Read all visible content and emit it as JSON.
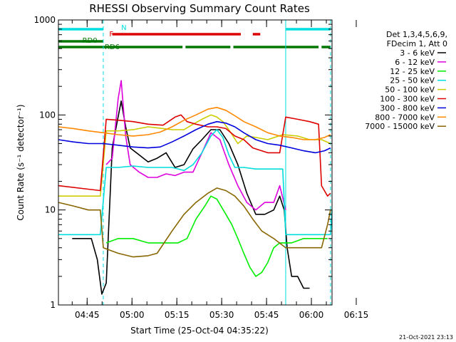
{
  "chart_data": {
    "type": "line",
    "title": "RHESSI Observing Summary Count Rates",
    "xlabel": "Start Time (25-Oct-04 04:35:22)",
    "ylabel": "Count Rate (s⁻¹ detector⁻¹)",
    "yscale": "log",
    "ylim": [
      1,
      1000
    ],
    "yticks": [
      "1",
      "10",
      "100",
      "1000"
    ],
    "xticks": [
      "04:45",
      "05:00",
      "05:15",
      "05:30",
      "05:45",
      "06:00",
      "06:15"
    ],
    "grid": false,
    "legend_position": "right",
    "legend_title": [
      "Det 1,3,4,5,6,9,",
      "FDecim 1, Att 0"
    ],
    "timestamp": "21-Oct-2021 23:13",
    "series": [
      {
        "name": "3 - 6 keV",
        "color": "#000000",
        "points": [
          [
            4.6,
            5
          ],
          [
            11,
            5
          ],
          [
            13,
            3
          ],
          [
            14.5,
            1.3
          ],
          [
            16,
            1.7
          ],
          [
            18,
            45
          ],
          [
            19.5,
            80
          ],
          [
            21,
            140
          ],
          [
            22.5,
            75
          ],
          [
            24,
            45
          ],
          [
            27,
            38
          ],
          [
            30,
            32
          ],
          [
            33,
            35
          ],
          [
            36,
            40
          ],
          [
            39,
            28
          ],
          [
            42,
            30
          ],
          [
            45,
            44
          ],
          [
            48,
            55
          ],
          [
            51,
            70
          ],
          [
            54,
            70
          ],
          [
            57,
            50
          ],
          [
            60,
            30
          ],
          [
            63,
            15
          ],
          [
            66,
            9
          ],
          [
            69,
            9
          ],
          [
            72,
            10
          ],
          [
            74,
            14
          ],
          [
            75.5,
            10
          ],
          [
            76.5,
            4
          ],
          [
            78,
            2
          ],
          [
            80,
            2
          ],
          [
            82,
            1.5
          ],
          [
            84,
            1.5
          ]
        ]
      },
      {
        "name": "6 - 12 keV",
        "color": "#dd00dd",
        "points": [
          [
            16,
            30
          ],
          [
            18,
            35
          ],
          [
            20,
            150
          ],
          [
            21,
            230
          ],
          [
            22.5,
            60
          ],
          [
            24,
            30
          ],
          [
            27,
            25
          ],
          [
            30,
            22
          ],
          [
            33,
            22
          ],
          [
            36,
            24
          ],
          [
            39,
            23
          ],
          [
            42,
            25
          ],
          [
            45,
            25
          ],
          [
            48,
            40
          ],
          [
            51,
            65
          ],
          [
            54,
            55
          ],
          [
            57,
            30
          ],
          [
            60,
            18
          ],
          [
            63,
            12
          ],
          [
            66,
            10
          ],
          [
            69,
            12
          ],
          [
            72,
            12
          ],
          [
            74,
            18
          ],
          [
            76,
            10
          ]
        ]
      },
      {
        "name": "12 - 25 keV",
        "color": "#00ee00",
        "points": [
          [
            16,
            4.5
          ],
          [
            20,
            5
          ],
          [
            25,
            5
          ],
          [
            30,
            4.5
          ],
          [
            35,
            4.5
          ],
          [
            40,
            4.5
          ],
          [
            43,
            5
          ],
          [
            46,
            8
          ],
          [
            49,
            11
          ],
          [
            51,
            14
          ],
          [
            53,
            13
          ],
          [
            56,
            9
          ],
          [
            58,
            7
          ],
          [
            60,
            5
          ],
          [
            62,
            3.5
          ],
          [
            64,
            2.5
          ],
          [
            66,
            2
          ],
          [
            68,
            2.2
          ],
          [
            70,
            2.8
          ],
          [
            72,
            4
          ],
          [
            74,
            4.5
          ],
          [
            78,
            4.5
          ],
          [
            82,
            5
          ],
          [
            86,
            5
          ],
          [
            90,
            5
          ]
        ]
      },
      {
        "name": "25 - 50 keV",
        "color": "#00dddd",
        "points": [
          [
            0,
            5.5
          ],
          [
            14,
            5.5
          ],
          [
            16,
            28
          ],
          [
            20,
            28
          ],
          [
            25,
            29
          ],
          [
            30,
            28
          ],
          [
            35,
            28
          ],
          [
            38,
            28
          ],
          [
            42,
            26
          ],
          [
            45,
            30
          ],
          [
            48,
            40
          ],
          [
            51,
            60
          ],
          [
            53,
            70
          ],
          [
            55,
            58
          ],
          [
            57,
            38
          ],
          [
            59,
            28
          ],
          [
            62,
            28
          ],
          [
            66,
            27
          ],
          [
            70,
            27
          ],
          [
            75,
            27
          ],
          [
            76,
            5.5
          ],
          [
            80,
            5.5
          ],
          [
            84,
            5.5
          ],
          [
            88,
            5.5
          ],
          [
            91,
            5.5
          ],
          [
            91.5,
            10
          ]
        ]
      },
      {
        "name": "50 - 100 keV",
        "color": "#cccc00",
        "points": [
          [
            0,
            14
          ],
          [
            14,
            14
          ],
          [
            16,
            68
          ],
          [
            20,
            68
          ],
          [
            25,
            70
          ],
          [
            30,
            75
          ],
          [
            35,
            72
          ],
          [
            38,
            70
          ],
          [
            42,
            70
          ],
          [
            45,
            80
          ],
          [
            48,
            90
          ],
          [
            51,
            100
          ],
          [
            53,
            95
          ],
          [
            55,
            85
          ],
          [
            57,
            70
          ],
          [
            60,
            50
          ],
          [
            63,
            60
          ],
          [
            66,
            58
          ],
          [
            70,
            55
          ],
          [
            75,
            62
          ],
          [
            80,
            60
          ],
          [
            84,
            55
          ],
          [
            88,
            55
          ],
          [
            91,
            50
          ]
        ]
      },
      {
        "name": "100 - 300 keV",
        "color": "#dd0000",
        "points": [
          [
            0,
            18
          ],
          [
            14,
            16
          ],
          [
            16,
            90
          ],
          [
            20,
            88
          ],
          [
            25,
            85
          ],
          [
            30,
            80
          ],
          [
            35,
            78
          ],
          [
            39,
            95
          ],
          [
            41,
            100
          ],
          [
            43,
            85
          ],
          [
            46,
            80
          ],
          [
            50,
            75
          ],
          [
            53,
            75
          ],
          [
            56,
            72
          ],
          [
            59,
            60
          ],
          [
            62,
            55
          ],
          [
            65,
            45
          ],
          [
            70,
            40
          ],
          [
            74,
            40
          ],
          [
            76,
            95
          ],
          [
            80,
            90
          ],
          [
            84,
            85
          ],
          [
            87,
            80
          ],
          [
            88,
            18
          ],
          [
            90,
            14
          ],
          [
            91,
            15
          ]
        ]
      },
      {
        "name": "300 - 800 keV",
        "color": "#0000dd",
        "points": [
          [
            0,
            55
          ],
          [
            5,
            52
          ],
          [
            10,
            50
          ],
          [
            15,
            50
          ],
          [
            20,
            48
          ],
          [
            25,
            46
          ],
          [
            30,
            45
          ],
          [
            34,
            46
          ],
          [
            38,
            52
          ],
          [
            42,
            60
          ],
          [
            46,
            70
          ],
          [
            50,
            80
          ],
          [
            53,
            85
          ],
          [
            56,
            82
          ],
          [
            59,
            75
          ],
          [
            62,
            65
          ],
          [
            66,
            55
          ],
          [
            70,
            50
          ],
          [
            74,
            48
          ],
          [
            78,
            45
          ],
          [
            82,
            42
          ],
          [
            86,
            40
          ],
          [
            89,
            42
          ],
          [
            91,
            45
          ]
        ]
      },
      {
        "name": "800 - 7000 keV",
        "color": "#ff8800",
        "points": [
          [
            0,
            75
          ],
          [
            5,
            72
          ],
          [
            10,
            68
          ],
          [
            15,
            65
          ],
          [
            20,
            62
          ],
          [
            25,
            60
          ],
          [
            30,
            62
          ],
          [
            34,
            66
          ],
          [
            38,
            75
          ],
          [
            42,
            88
          ],
          [
            46,
            100
          ],
          [
            50,
            115
          ],
          [
            53,
            120
          ],
          [
            56,
            112
          ],
          [
            59,
            98
          ],
          [
            62,
            85
          ],
          [
            66,
            75
          ],
          [
            70,
            65
          ],
          [
            74,
            60
          ],
          [
            78,
            58
          ],
          [
            82,
            55
          ],
          [
            86,
            55
          ],
          [
            89,
            58
          ],
          [
            91,
            62
          ]
        ]
      },
      {
        "name": "7000 - 15000 keV",
        "color": "#886600",
        "points": [
          [
            0,
            12
          ],
          [
            5,
            11
          ],
          [
            10,
            10
          ],
          [
            14,
            10
          ],
          [
            15,
            4
          ],
          [
            20,
            3.5
          ],
          [
            25,
            3.2
          ],
          [
            30,
            3.3
          ],
          [
            33,
            3.5
          ],
          [
            38,
            6
          ],
          [
            42,
            9
          ],
          [
            46,
            12
          ],
          [
            50,
            15
          ],
          [
            53,
            17
          ],
          [
            56,
            16
          ],
          [
            59,
            14
          ],
          [
            62,
            11
          ],
          [
            65,
            8
          ],
          [
            68,
            6
          ],
          [
            72,
            5
          ],
          [
            76,
            4
          ],
          [
            80,
            4
          ],
          [
            84,
            4
          ],
          [
            88,
            4
          ],
          [
            90,
            7
          ],
          [
            91,
            10
          ]
        ]
      }
    ],
    "state_bars": [
      {
        "label": "N",
        "color": "#00dddd",
        "segments": [
          [
            0,
            15
          ],
          [
            76,
            91
          ]
        ]
      },
      {
        "label": "F",
        "color": "#dd0000",
        "segments": [
          [
            18,
            61
          ],
          [
            65,
            67.5
          ]
        ]
      },
      {
        "label": "RD0",
        "color": "#007700",
        "segments": [
          [
            0,
            15
          ]
        ]
      },
      {
        "label": "RD6",
        "color": "#007700",
        "segments": [
          [
            0,
            41.5
          ],
          [
            42.5,
            57.5
          ],
          [
            58.5,
            87
          ],
          [
            88,
            91
          ]
        ]
      }
    ],
    "vlines": [
      {
        "x": 0,
        "color": "#00dddd",
        "style": "solid"
      },
      {
        "x": 15,
        "color": "#00dddd",
        "style": "dashed"
      },
      {
        "x": 76,
        "color": "#00dddd",
        "style": "solid"
      },
      {
        "x": 91,
        "color": "#00dddd",
        "style": "dashed"
      }
    ]
  }
}
